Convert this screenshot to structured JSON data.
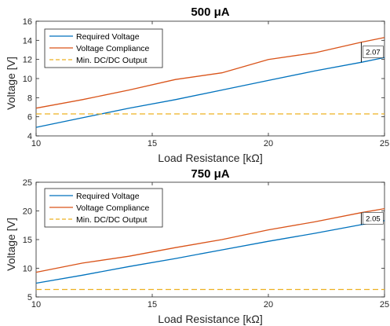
{
  "chart_data": [
    {
      "type": "line",
      "title": "500 μA",
      "xlabel": "Load Resistance [kΩ]",
      "ylabel": "Voltage [V]",
      "xlim": [
        10,
        25
      ],
      "ylim": [
        4,
        16
      ],
      "xticks": [
        "10",
        "15",
        "20",
        "25"
      ],
      "yticks": [
        "4",
        "6",
        "8",
        "10",
        "12",
        "14",
        "16"
      ],
      "x": [
        10,
        12,
        14,
        16,
        18,
        20,
        22,
        24,
        25
      ],
      "series": [
        {
          "name": "Required Voltage",
          "color": "#0072BD",
          "dash": "solid",
          "values": [
            4.9,
            5.9,
            6.9,
            7.8,
            8.8,
            9.8,
            10.8,
            11.7,
            12.2
          ]
        },
        {
          "name": "Voltage Compliance",
          "color": "#D95319",
          "dash": "solid",
          "values": [
            6.9,
            7.8,
            8.8,
            9.9,
            10.6,
            12.0,
            12.7,
            13.8,
            14.3
          ]
        },
        {
          "name": "Min. DC/DC Output",
          "color": "#EDB120",
          "dash": "dashed",
          "values": [
            6.3,
            6.3,
            6.3,
            6.3,
            6.3,
            6.3,
            6.3,
            6.3,
            6.3
          ]
        }
      ],
      "annotation": {
        "text": "2.07",
        "x": 24,
        "y_low": 11.7,
        "y_high": 13.8
      },
      "legend": "top-left",
      "grid": false
    },
    {
      "type": "line",
      "title": "750 μA",
      "xlabel": "Load Resistance [kΩ]",
      "ylabel": "Voltage [V]",
      "xlim": [
        10,
        25
      ],
      "ylim": [
        5,
        25
      ],
      "xticks": [
        "10",
        "15",
        "20",
        "25"
      ],
      "yticks": [
        "5",
        "10",
        "15",
        "20",
        "25"
      ],
      "x": [
        10,
        12,
        14,
        16,
        18,
        20,
        22,
        24,
        25
      ],
      "series": [
        {
          "name": "Required Voltage",
          "color": "#0072BD",
          "dash": "solid",
          "values": [
            7.4,
            8.8,
            10.3,
            11.7,
            13.2,
            14.7,
            16.1,
            17.6,
            18.3
          ]
        },
        {
          "name": "Voltage Compliance",
          "color": "#D95319",
          "dash": "solid",
          "values": [
            9.3,
            10.9,
            12.1,
            13.6,
            15.0,
            16.7,
            18.1,
            19.7,
            20.4
          ]
        },
        {
          "name": "Min. DC/DC Output",
          "color": "#EDB120",
          "dash": "dashed",
          "values": [
            6.3,
            6.3,
            6.3,
            6.3,
            6.3,
            6.3,
            6.3,
            6.3,
            6.3
          ]
        }
      ],
      "annotation": {
        "text": "2.05",
        "x": 24,
        "y_low": 17.6,
        "y_high": 19.7
      },
      "legend": "top-left",
      "grid": false
    }
  ]
}
